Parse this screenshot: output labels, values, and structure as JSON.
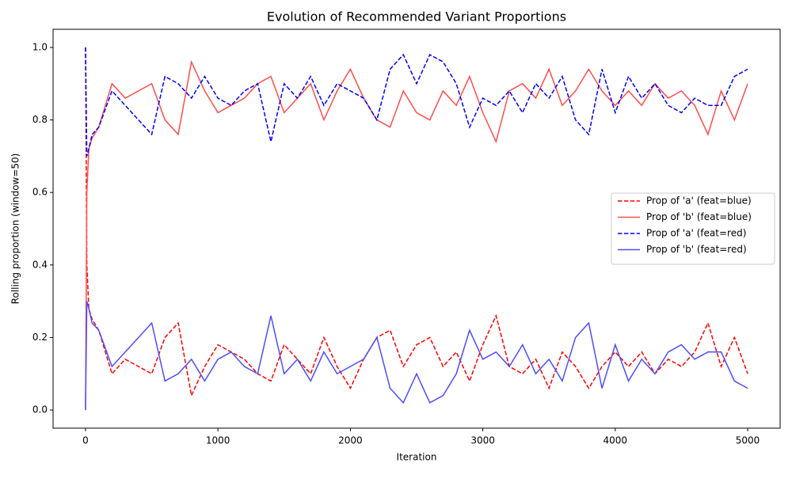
{
  "chart_data": {
    "type": "line",
    "title": "Evolution of Recommended Variant Proportions",
    "x_label": "Iteration",
    "y_label": "Rolling proportion (window=50)",
    "x": [
      0,
      10,
      25,
      50,
      100,
      200,
      300,
      400,
      500,
      600,
      700,
      800,
      900,
      1000,
      1100,
      1200,
      1300,
      1400,
      1500,
      1600,
      1700,
      1800,
      1900,
      2000,
      2100,
      2200,
      2300,
      2400,
      2500,
      2600,
      2700,
      2800,
      2900,
      3000,
      3100,
      3200,
      3300,
      3400,
      3500,
      3600,
      3700,
      3800,
      3900,
      4000,
      4100,
      4200,
      4300,
      4400,
      4500,
      4600,
      4700,
      4800,
      4900,
      5000
    ],
    "series": [
      {
        "name": "Prop of 'a' (feat=blue)",
        "color": "#ff0000",
        "linestyle": "dashed",
        "values": [
          1.0,
          0.4,
          0.28,
          0.25,
          0.22,
          0.1,
          0.14,
          0.12,
          0.1,
          0.2,
          0.24,
          0.04,
          0.12,
          0.18,
          0.16,
          0.14,
          0.1,
          0.08,
          0.18,
          0.14,
          0.1,
          0.2,
          0.12,
          0.06,
          0.14,
          0.2,
          0.22,
          0.12,
          0.18,
          0.2,
          0.12,
          0.16,
          0.08,
          0.18,
          0.26,
          0.12,
          0.1,
          0.14,
          0.06,
          0.16,
          0.12,
          0.06,
          0.12,
          0.16,
          0.12,
          0.16,
          0.1,
          0.14,
          0.12,
          0.16,
          0.24,
          0.12,
          0.2,
          0.1
        ]
      },
      {
        "name": "Prop of 'b' (feat=blue)",
        "color": "#ff4d4d",
        "linestyle": "solid",
        "values": [
          0,
          0.6,
          0.72,
          0.75,
          0.78,
          0.9,
          0.86,
          0.88,
          0.9,
          0.8,
          0.76,
          0.96,
          0.88,
          0.82,
          0.84,
          0.86,
          0.9,
          0.92,
          0.82,
          0.86,
          0.9,
          0.8,
          0.88,
          0.94,
          0.86,
          0.8,
          0.78,
          0.88,
          0.82,
          0.8,
          0.88,
          0.84,
          0.92,
          0.82,
          0.74,
          0.88,
          0.9,
          0.86,
          0.94,
          0.84,
          0.88,
          0.94,
          0.88,
          0.84,
          0.88,
          0.84,
          0.9,
          0.86,
          0.88,
          0.84,
          0.76,
          0.88,
          0.8,
          0.9
        ]
      },
      {
        "name": "Prop of 'a' (feat=red)",
        "color": "#0000ff",
        "linestyle": "dashed",
        "values": [
          1.0,
          0.7,
          0.72,
          0.76,
          0.78,
          0.88,
          0.84,
          0.8,
          0.76,
          0.92,
          0.9,
          0.86,
          0.92,
          0.86,
          0.84,
          0.88,
          0.9,
          0.74,
          0.9,
          0.86,
          0.92,
          0.84,
          0.9,
          0.88,
          0.86,
          0.8,
          0.94,
          0.98,
          0.9,
          0.98,
          0.96,
          0.9,
          0.78,
          0.86,
          0.84,
          0.88,
          0.82,
          0.9,
          0.86,
          0.92,
          0.8,
          0.76,
          0.94,
          0.82,
          0.92,
          0.86,
          0.9,
          0.84,
          0.82,
          0.86,
          0.84,
          0.84,
          0.92,
          0.94
        ]
      },
      {
        "name": "Prop of 'b' (feat=red)",
        "color": "#4d4dff",
        "linestyle": "solid",
        "values": [
          0,
          0.3,
          0.28,
          0.24,
          0.22,
          0.12,
          0.16,
          0.2,
          0.24,
          0.08,
          0.1,
          0.14,
          0.08,
          0.14,
          0.16,
          0.12,
          0.1,
          0.26,
          0.1,
          0.14,
          0.08,
          0.16,
          0.1,
          0.12,
          0.14,
          0.2,
          0.06,
          0.02,
          0.1,
          0.02,
          0.04,
          0.1,
          0.22,
          0.14,
          0.16,
          0.12,
          0.18,
          0.1,
          0.14,
          0.08,
          0.2,
          0.24,
          0.06,
          0.18,
          0.08,
          0.14,
          0.1,
          0.16,
          0.18,
          0.14,
          0.16,
          0.16,
          0.08,
          0.06
        ]
      }
    ],
    "xlim": [
      -245,
      5245
    ],
    "ylim": [
      -0.05,
      1.05
    ],
    "xticks": [
      0,
      1000,
      2000,
      3000,
      4000,
      5000
    ],
    "yticks": [
      {
        "value": 0,
        "label": "0.0"
      },
      {
        "value": 0.2,
        "label": "0.2"
      },
      {
        "value": 0.4,
        "label": "0.4"
      },
      {
        "value": 0.6,
        "label": "0.6"
      },
      {
        "value": 0.8,
        "label": "0.8"
      },
      {
        "value": 1,
        "label": "1.0"
      }
    ],
    "legend": "center right"
  }
}
